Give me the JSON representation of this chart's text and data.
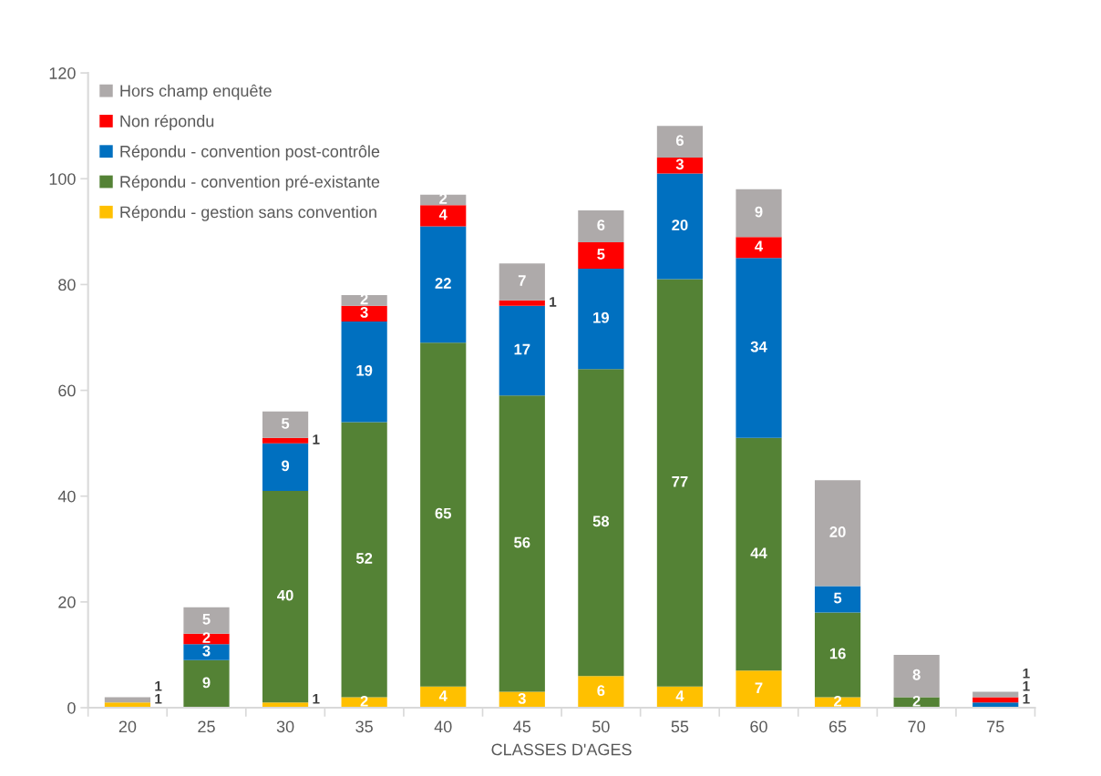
{
  "chart_data": {
    "type": "bar",
    "stacked": true,
    "xlabel": "CLASSES D'AGES",
    "categories": [
      "20",
      "25",
      "30",
      "35",
      "40",
      "45",
      "50",
      "55",
      "60",
      "65",
      "70",
      "75"
    ],
    "series": [
      {
        "name": "Répondu - gestion sans convention",
        "color": "#ffc000",
        "values": [
          1,
          null,
          1,
          2,
          4,
          3,
          6,
          4,
          7,
          2,
          null,
          null
        ]
      },
      {
        "name": "Répondu - convention pré-existante",
        "color": "#548235",
        "values": [
          null,
          9,
          40,
          52,
          65,
          56,
          58,
          77,
          44,
          16,
          2,
          null
        ]
      },
      {
        "name": "Répondu - convention post-contrôle",
        "color": "#0070c0",
        "values": [
          null,
          3,
          9,
          19,
          22,
          17,
          19,
          20,
          34,
          5,
          null,
          1
        ]
      },
      {
        "name": "Non répondu",
        "color": "#ff0000",
        "values": [
          null,
          2,
          1,
          3,
          4,
          1,
          5,
          3,
          4,
          null,
          null,
          1
        ]
      },
      {
        "name": "Hors champ enquête",
        "color": "#aeaaaa",
        "values": [
          1,
          5,
          5,
          2,
          2,
          7,
          6,
          6,
          9,
          20,
          8,
          1
        ]
      }
    ],
    "ylim": [
      0,
      120
    ],
    "yticks": [
      0,
      20,
      40,
      60,
      80,
      100,
      120
    ],
    "data_labels": true,
    "legend": "top left",
    "grid": false
  }
}
